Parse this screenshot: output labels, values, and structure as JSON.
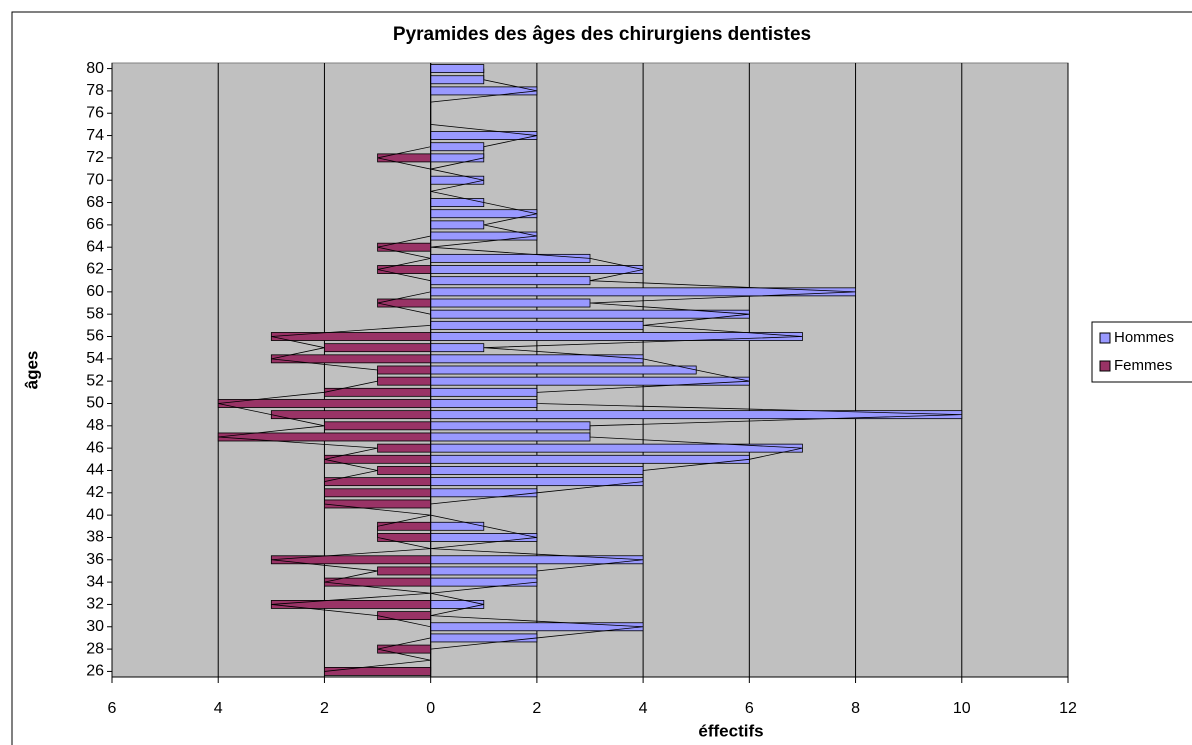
{
  "chart_data": {
    "type": "bar",
    "orientation": "horizontal",
    "title": "Pyramides des âges des chirurgiens dentistes",
    "xlabel": "éffectifs",
    "ylabel": "âges",
    "ages": [
      26,
      27,
      28,
      29,
      30,
      31,
      32,
      33,
      34,
      35,
      36,
      37,
      38,
      39,
      40,
      41,
      42,
      43,
      44,
      45,
      46,
      47,
      48,
      49,
      50,
      51,
      52,
      53,
      54,
      55,
      56,
      57,
      58,
      59,
      60,
      61,
      62,
      63,
      64,
      65,
      66,
      67,
      68,
      69,
      70,
      71,
      72,
      73,
      74,
      75,
      76,
      77,
      78,
      79,
      80
    ],
    "series": [
      {
        "name": "Hommes",
        "color": "#9999ff",
        "values": [
          0,
          0,
          0,
          2,
          4,
          0,
          1,
          0,
          2,
          2,
          4,
          0,
          2,
          1,
          0,
          0,
          2,
          4,
          4,
          6,
          7,
          3,
          3,
          10,
          2,
          2,
          6,
          5,
          4,
          1,
          7,
          4,
          6,
          3,
          8,
          3,
          4,
          3,
          0,
          2,
          1,
          2,
          1,
          0,
          1,
          0,
          1,
          1,
          2,
          0,
          0,
          0,
          2,
          1,
          1
        ]
      },
      {
        "name": "Femmes",
        "color": "#993366",
        "values": [
          -2,
          0,
          -1,
          0,
          0,
          -1,
          -3,
          0,
          -2,
          -1,
          -3,
          0,
          -1,
          -1,
          0,
          -2,
          -2,
          -2,
          -1,
          -2,
          -1,
          -4,
          -2,
          -3,
          -4,
          -2,
          -1,
          -1,
          -3,
          -2,
          -3,
          0,
          0,
          -1,
          0,
          0,
          -1,
          0,
          -1,
          0,
          0,
          0,
          0,
          0,
          0,
          0,
          -1,
          0,
          0,
          0,
          0,
          0,
          0,
          0,
          0
        ]
      }
    ],
    "xlim": [
      -6,
      12
    ],
    "xticks": [
      {
        "value": -6,
        "label": "6"
      },
      {
        "value": -4,
        "label": "4"
      },
      {
        "value": -2,
        "label": "2"
      },
      0,
      2,
      4,
      6,
      8,
      10,
      12
    ],
    "negative_tick_color": "#ff0000",
    "ylim": [
      25.5,
      80.5
    ],
    "yticks": [
      26,
      28,
      30,
      32,
      34,
      36,
      38,
      40,
      42,
      44,
      46,
      48,
      50,
      52,
      54,
      56,
      58,
      60,
      62,
      64,
      66,
      68,
      70,
      72,
      74,
      76,
      78,
      80
    ],
    "grid": true,
    "plot_background": "#c0c0c0",
    "legend": "right"
  }
}
